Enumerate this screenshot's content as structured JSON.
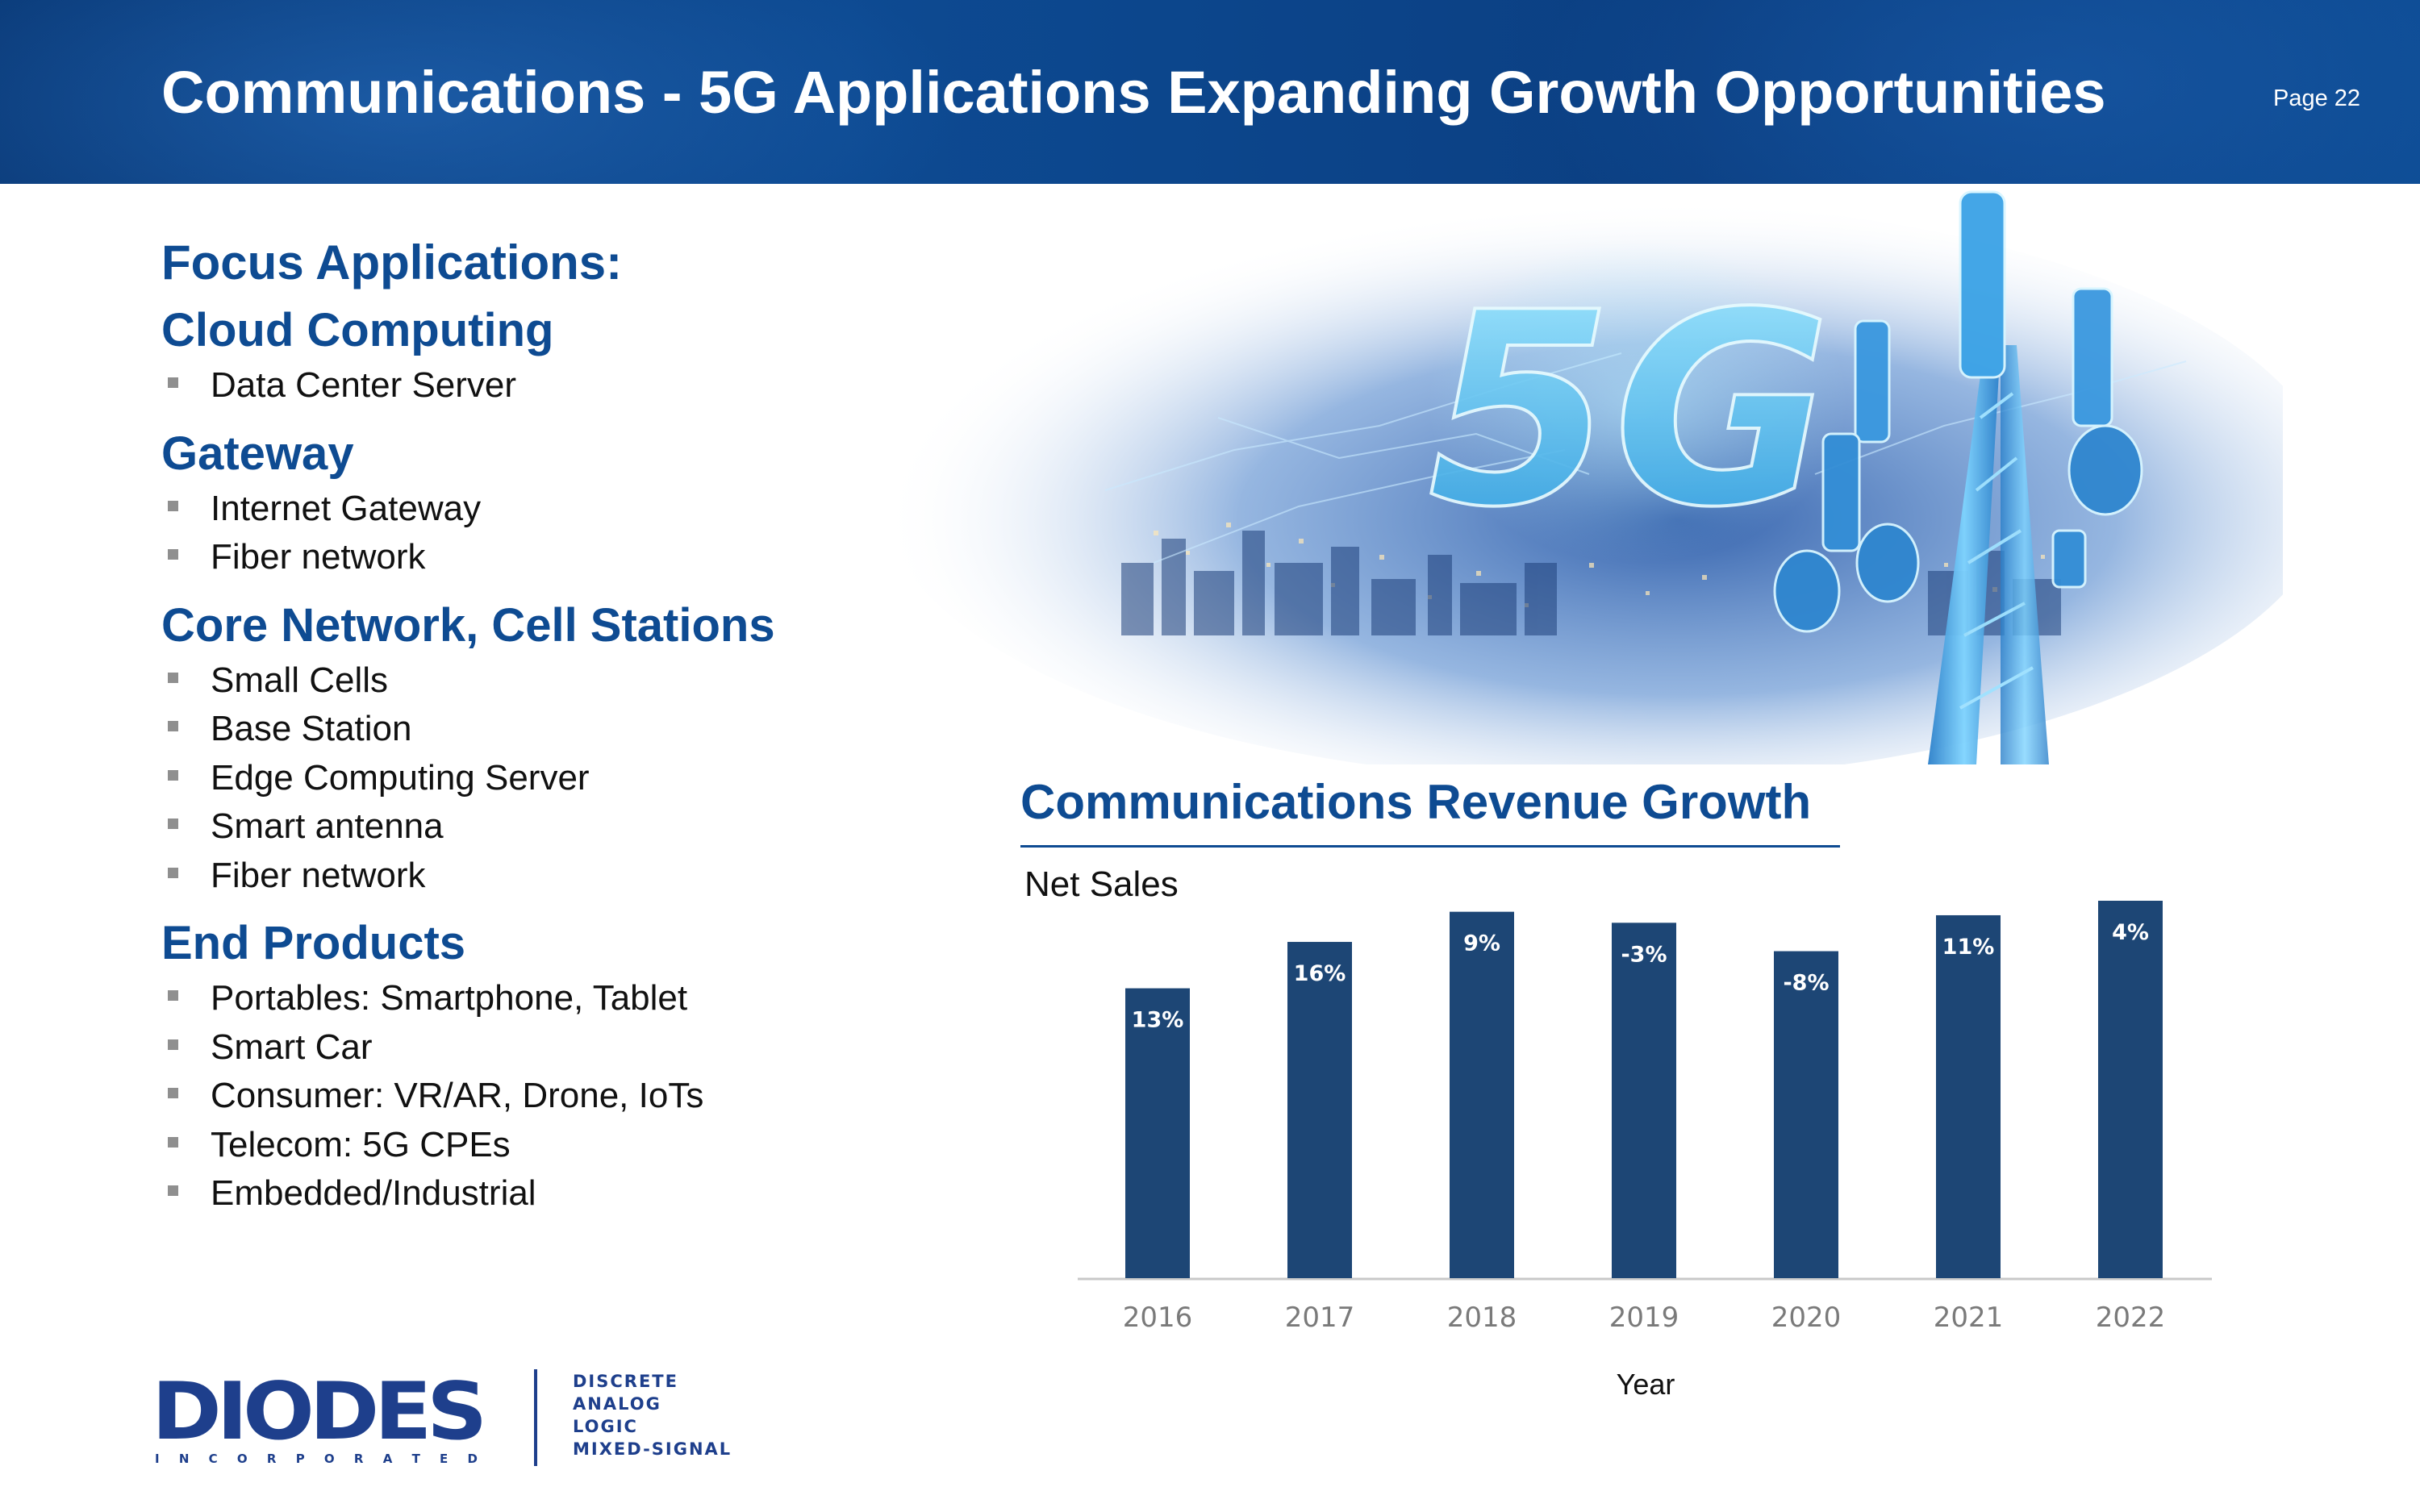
{
  "header": {
    "title": "Communications - 5G Applications Expanding Growth Opportunities",
    "page_number": "Page 22",
    "background_color": "#0b4185"
  },
  "focus": {
    "heading": "Focus Applications:",
    "sections": [
      {
        "title": "Cloud Computing",
        "items": [
          "Data Center Server"
        ]
      },
      {
        "title": "Gateway",
        "items": [
          "Internet Gateway",
          "Fiber network"
        ]
      },
      {
        "title": "Core Network, Cell Stations",
        "items": [
          "Small Cells",
          "Base Station",
          "Edge Computing Server",
          "Smart antenna",
          "Fiber network"
        ]
      },
      {
        "title": "End Products",
        "items": [
          "Portables: Smartphone, Tablet",
          "Smart Car",
          "Consumer: VR/AR, Drone, IoTs",
          "Telecom: 5G CPEs",
          "Embedded/Industrial"
        ]
      }
    ]
  },
  "hero": {
    "icon": "5g-tower-city-image",
    "text": "5G"
  },
  "chart": {
    "title": "Communications Revenue Growth",
    "subtitle": "Net Sales",
    "xlabel": "Year"
  },
  "chart_data": {
    "type": "bar",
    "title": "Communications Revenue Growth",
    "ylabel": "Net Sales",
    "xlabel": "Year",
    "categories": [
      "2016",
      "2017",
      "2018",
      "2019",
      "2020",
      "2021",
      "2022"
    ],
    "values": [
      100,
      116,
      126.4,
      122.6,
      112.8,
      125.2,
      130.2
    ],
    "data_labels": [
      "13%",
      "16%",
      "9%",
      "-3%",
      "-8%",
      "11%",
      "4%"
    ],
    "ylim": [
      0,
      130.2
    ],
    "y_axis_shown": false,
    "grid": false,
    "bar_color": "#1d4675",
    "label_color": "#ffffff"
  },
  "logo": {
    "name": "DIODES",
    "sub": "I N C O R P O R A T E D",
    "tagline": [
      "DISCRETE",
      "ANALOG",
      "LOGIC",
      "MIXED-SIGNAL"
    ],
    "color": "#1e3f8c"
  }
}
